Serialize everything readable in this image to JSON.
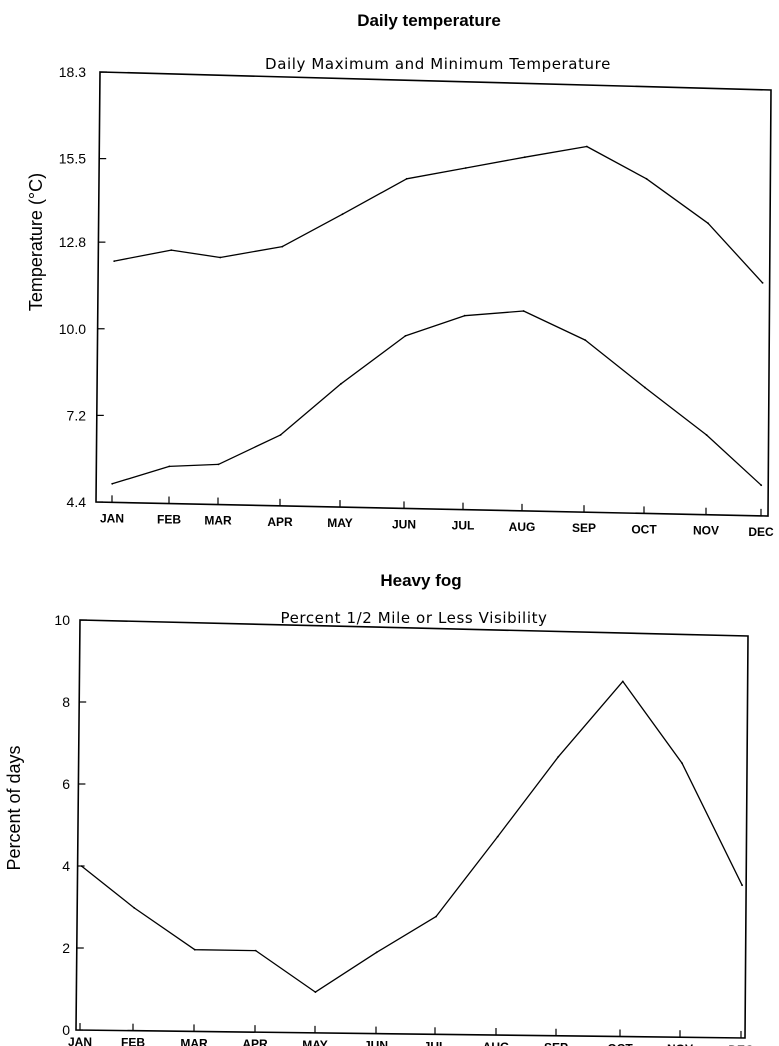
{
  "chart_data": [
    {
      "type": "line",
      "title": "Daily temperature",
      "subtitle": "Daily Maximum and Minimum Temperature",
      "ylabel": "Temperature (°C)",
      "xlabel": "",
      "categories": [
        "JAN",
        "FEB",
        "MAR",
        "APR",
        "MAY",
        "JUN",
        "JUL",
        "AUG",
        "SEP",
        "OCT",
        "NOV",
        "DEC"
      ],
      "yticks": [
        "4.4",
        "7.2",
        "10.0",
        "12.8",
        "15.5",
        "18.3"
      ],
      "ylim": [
        4.4,
        18.3
      ],
      "grid": false,
      "series": [
        {
          "values": [
            12.2,
            12.6,
            12.4,
            12.8,
            13.9,
            15.1,
            15.5,
            15.9,
            16.3,
            15.3,
            13.9,
            12.0
          ]
        },
        {
          "values": [
            5.0,
            5.6,
            5.7,
            6.7,
            8.4,
            10.0,
            10.7,
            10.9,
            10.0,
            8.5,
            7.0,
            5.4
          ]
        }
      ]
    },
    {
      "type": "line",
      "title": "Heavy fog",
      "subtitle": "Percent 1/2 Mile or Less Visibility",
      "ylabel": "Percent of days",
      "xlabel": "",
      "categories": [
        "JAN",
        "FEB",
        "MAR",
        "APR",
        "MAY",
        "JUN",
        "JUL",
        "AUG",
        "SEP",
        "OCT",
        "NOV",
        "DEC"
      ],
      "yticks": [
        "0",
        "2",
        "4",
        "6",
        "8",
        "10"
      ],
      "ylim": [
        0,
        10
      ],
      "grid": false,
      "series": [
        {
          "values": [
            4.0,
            3.0,
            2.0,
            2.0,
            1.0,
            2.0,
            2.9,
            4.9,
            6.9,
            8.8,
            6.8,
            3.8
          ]
        }
      ]
    }
  ]
}
